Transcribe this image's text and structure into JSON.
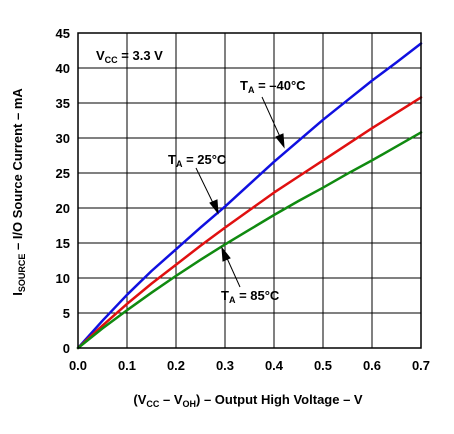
{
  "chart_data": {
    "type": "line",
    "title": "",
    "x_ticks": [
      "0.0",
      "0.1",
      "0.2",
      "0.3",
      "0.4",
      "0.5",
      "0.6",
      "0.7"
    ],
    "y_ticks": [
      "0",
      "5",
      "10",
      "15",
      "20",
      "25",
      "30",
      "35",
      "40",
      "45"
    ],
    "xlim": [
      0,
      0.7
    ],
    "ylim": [
      0,
      45
    ],
    "grid": true,
    "xlabel": {
      "open": "(V",
      "sub1": "CC",
      "mid": " – V",
      "sub2": "OH",
      "rest": ") – Output High Voltage – V"
    },
    "ylabel": {
      "main": "I",
      "sub": "SOURCE",
      "rest": " – I/O Source Current – mA"
    },
    "condition": {
      "main": "V",
      "sub": "CC",
      "rest": " = 3.3 V"
    },
    "series": [
      {
        "name": "T_A = –40°C",
        "label_main": "T",
        "label_sub": "A",
        "label_rest": " = –40°C",
        "color": "#1010e0",
        "x": [
          0,
          0.05,
          0.1,
          0.15,
          0.2,
          0.25,
          0.3,
          0.35,
          0.4,
          0.45,
          0.5,
          0.55,
          0.6,
          0.65,
          0.7
        ],
        "y": [
          0,
          3.9,
          7.6,
          11.0,
          14.1,
          17.2,
          20.2,
          23.4,
          26.6,
          29.6,
          32.6,
          35.4,
          38.2,
          40.8,
          43.5
        ]
      },
      {
        "name": "T_A = 25°C",
        "label_main": "T",
        "label_sub": "A",
        "label_rest": " = 25°C",
        "color": "#e01010",
        "x": [
          0,
          0.05,
          0.1,
          0.15,
          0.2,
          0.25,
          0.3,
          0.35,
          0.4,
          0.45,
          0.5,
          0.55,
          0.6,
          0.65,
          0.7
        ],
        "y": [
          0,
          3.2,
          6.3,
          9.2,
          11.9,
          14.6,
          17.2,
          19.7,
          22.2,
          24.5,
          26.8,
          29.1,
          31.4,
          33.6,
          35.8
        ]
      },
      {
        "name": "T_A = 85°C",
        "label_main": "T",
        "label_sub": "A",
        "label_rest": " = 85°C",
        "color": "#108a10",
        "x": [
          0,
          0.05,
          0.1,
          0.15,
          0.2,
          0.25,
          0.3,
          0.35,
          0.4,
          0.45,
          0.5,
          0.55,
          0.6,
          0.65,
          0.7
        ],
        "y": [
          0,
          2.8,
          5.4,
          7.9,
          10.3,
          12.6,
          14.8,
          16.9,
          19.0,
          21.0,
          22.9,
          24.9,
          26.8,
          28.8,
          30.8
        ]
      }
    ]
  }
}
